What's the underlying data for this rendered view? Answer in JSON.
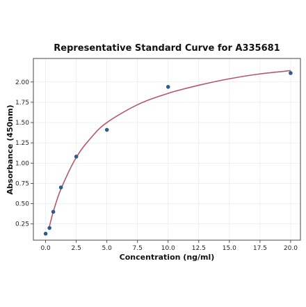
{
  "chart_data": {
    "type": "scatter",
    "title": "Representative Standard Curve for A335681",
    "xlabel": "Concentration (ng/ml)",
    "ylabel": "Absorbance (450nm)",
    "xlim": [
      -1.0,
      20.8
    ],
    "ylim": [
      0.05,
      2.29
    ],
    "xticks": [
      0.0,
      2.5,
      5.0,
      7.5,
      10.0,
      12.5,
      15.0,
      17.5,
      20.0
    ],
    "xtick_labels": [
      "0.0",
      "2.5",
      "5.0",
      "7.5",
      "10.0",
      "12.5",
      "15.0",
      "17.5",
      "20.0"
    ],
    "yticks": [
      0.25,
      0.5,
      0.75,
      1.0,
      1.25,
      1.5,
      1.75,
      2.0
    ],
    "ytick_labels": [
      "0.25",
      "0.50",
      "0.75",
      "1.00",
      "1.25",
      "1.50",
      "1.75",
      "2.00"
    ],
    "grid": true,
    "series": [
      {
        "kind": "points",
        "x": [
          0.0,
          0.313,
          0.625,
          1.25,
          2.5,
          5.0,
          10.0,
          20.0
        ],
        "y": [
          0.13,
          0.2,
          0.4,
          0.7,
          1.08,
          1.41,
          1.94,
          2.11
        ],
        "color": "#2c5d8a"
      },
      {
        "kind": "fit-curve",
        "x": [
          0.313,
          0.625,
          1.25,
          2.5,
          3.75,
          5.0,
          7.5,
          10.0,
          12.5,
          15.0,
          17.5,
          20.0
        ],
        "y": [
          0.22,
          0.4,
          0.68,
          1.07,
          1.32,
          1.5,
          1.72,
          1.86,
          1.96,
          2.04,
          2.1,
          2.14
        ],
        "color": "#b5566a"
      }
    ]
  }
}
